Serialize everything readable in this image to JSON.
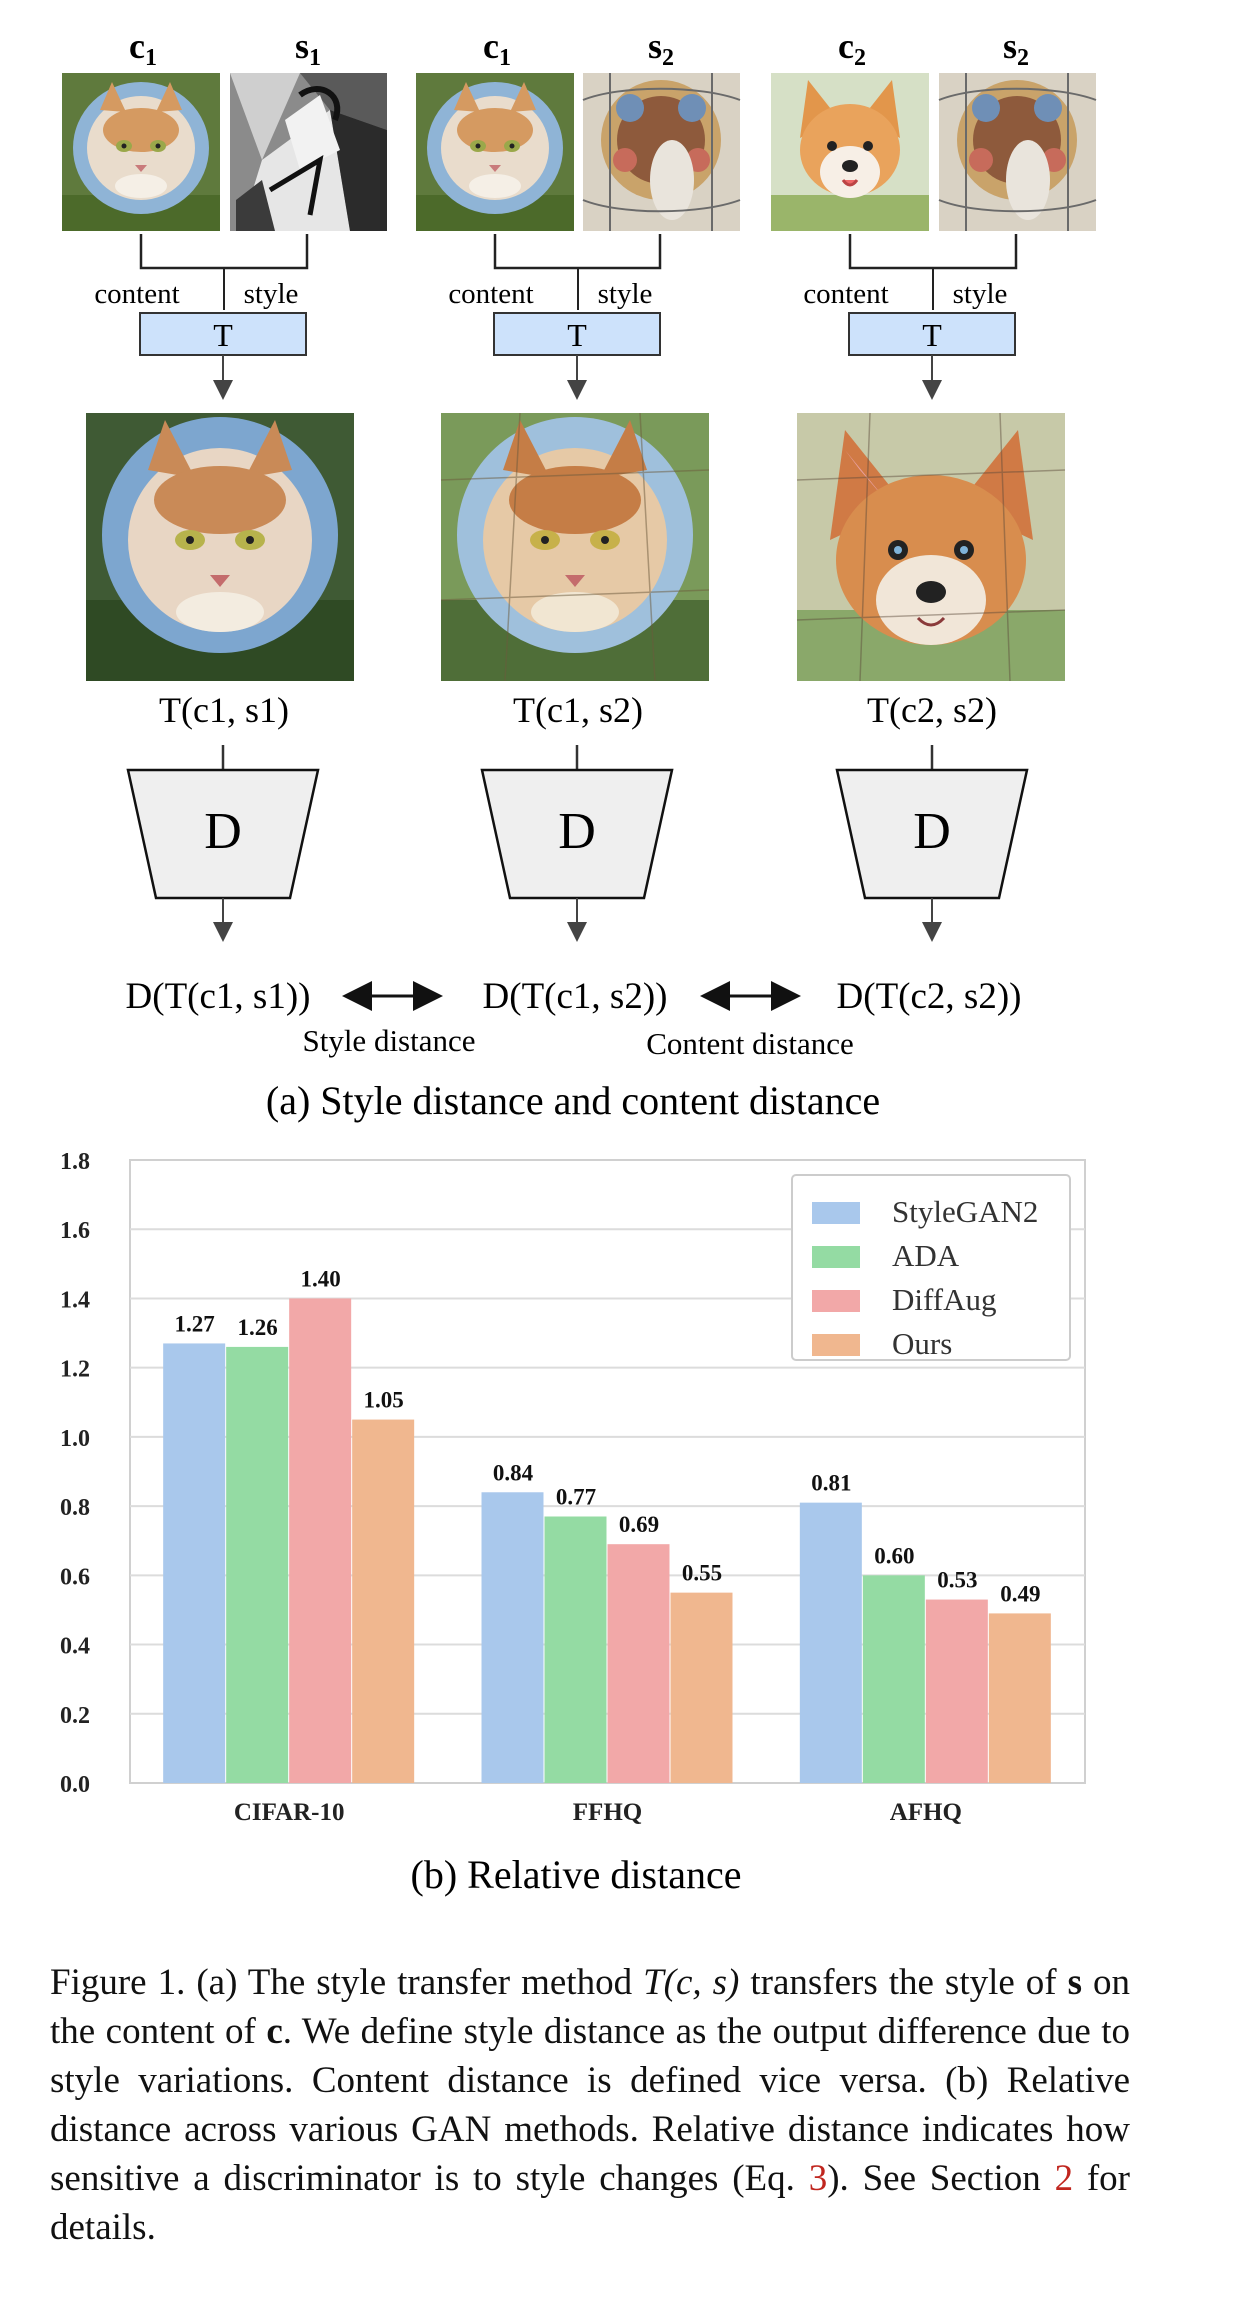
{
  "panel_a": {
    "columns": [
      {
        "content_label": "c",
        "content_sub": "1",
        "style_label": "s",
        "style_sub": "1",
        "content_tag": "content",
        "style_tag": "style",
        "transfer": "T",
        "output_label": "T(c1, s1)",
        "disc": "D",
        "content_image": "cat-photo",
        "style_image": "cubist-painting",
        "output_image": "stylized-cat-cubist"
      },
      {
        "content_label": "c",
        "content_sub": "1",
        "style_label": "s",
        "style_sub": "2",
        "content_tag": "content",
        "style_tag": "style",
        "transfer": "T",
        "output_label": "T(c1, s2)",
        "disc": "D",
        "content_image": "cat-photo",
        "style_image": "stained-glass-painting",
        "output_image": "stylized-cat-stained-glass"
      },
      {
        "content_label": "c",
        "content_sub": "2",
        "style_label": "s",
        "style_sub": "2",
        "content_tag": "content",
        "style_tag": "style",
        "transfer": "T",
        "output_label": "T(c2, s2)",
        "disc": "D",
        "content_image": "corgi-photo",
        "style_image": "stained-glass-painting",
        "output_image": "stylized-corgi-stained-glass"
      }
    ],
    "outputs": [
      "D(T(c1, s1))",
      "D(T(c1, s2))",
      "D(T(c2, s2))"
    ],
    "style_distance": "Style distance",
    "content_distance": "Content distance",
    "caption": "(a) Style distance and content distance"
  },
  "panel_b": {
    "caption": "(b) Relative distance"
  },
  "chart_data": {
    "type": "bar",
    "categories": [
      "CIFAR-10",
      "FFHQ",
      "AFHQ"
    ],
    "series": [
      {
        "name": "StyleGAN2",
        "values": [
          1.27,
          0.84,
          0.81
        ],
        "labels": [
          "1.27",
          "0.84",
          "0.81"
        ],
        "color": "#a9c8ec"
      },
      {
        "name": "ADA",
        "values": [
          1.26,
          0.77,
          0.6
        ],
        "labels": [
          "1.26",
          "0.77",
          "0.60"
        ],
        "color": "#94dba3"
      },
      {
        "name": "DiffAug",
        "values": [
          1.4,
          0.69,
          0.53
        ],
        "labels": [
          "1.40",
          "0.69",
          "0.53"
        ],
        "color": "#f2a8a8"
      },
      {
        "name": "Ours",
        "values": [
          1.05,
          0.55,
          0.49
        ],
        "labels": [
          "1.05",
          "0.55",
          "0.49"
        ],
        "color": "#f0b78f"
      }
    ],
    "yticks": [
      "0.0",
      "0.2",
      "0.4",
      "0.6",
      "0.8",
      "1.0",
      "1.2",
      "1.4",
      "1.6",
      "1.8"
    ],
    "ylim": [
      0,
      1.8
    ],
    "grid": true,
    "legend": "top-right",
    "title": "",
    "xlabel": "",
    "ylabel": ""
  },
  "figure_caption": {
    "prefix": "Figure 1. (a) The style transfer method ",
    "math": "T(c, s)",
    "part1": " transfers the style of ",
    "s": "s",
    "part2": " on the content of ",
    "c": "c",
    "part3": ". We define style distance as the output difference due to style variations. Content distance is defined vice versa. (b) Relative distance across various GAN methods. Relative distance indicates how sensitive a discriminator is to style changes (Eq. ",
    "eq_ref": "3",
    "part4": "). See Section ",
    "sec_ref": "2",
    "part5": " for details."
  }
}
